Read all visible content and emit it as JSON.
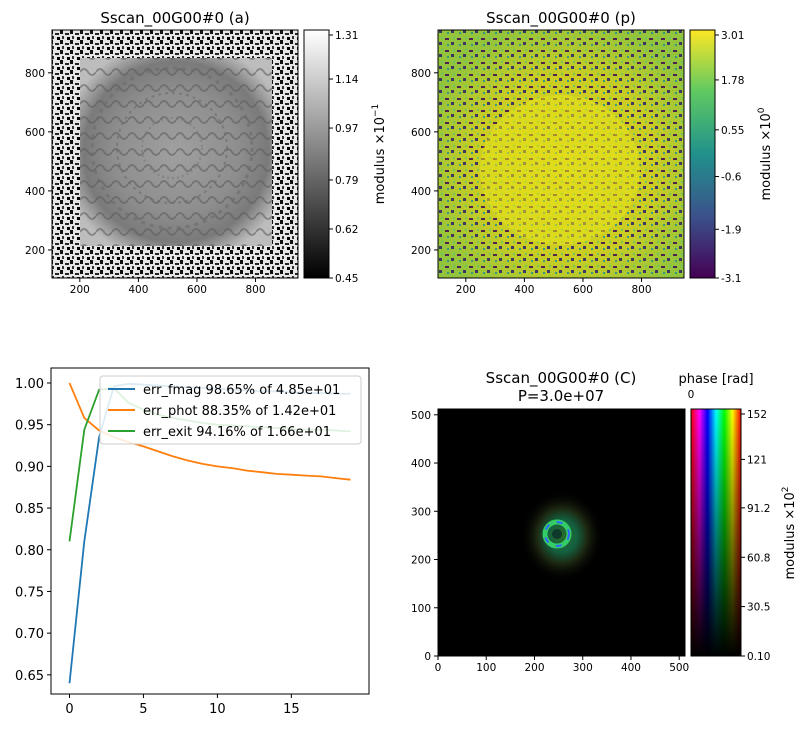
{
  "chart_data": [
    {
      "type": "heatmap",
      "title": "Sscan_00G00#0 (a)",
      "x_ticks": [
        "200",
        "400",
        "600",
        "800"
      ],
      "y_ticks": [
        "200",
        "400",
        "600",
        "800"
      ],
      "xlim": [
        105,
        945
      ],
      "ylim": [
        105,
        945
      ],
      "colorbar": {
        "ticks": [
          "1.31",
          "1.14",
          "0.97",
          "0.79",
          "0.62",
          "0.45"
        ],
        "range": [
          0.45,
          1.31
        ],
        "label": "modulus ×10",
        "label_exp": "−1",
        "colormap": "gray"
      }
    },
    {
      "type": "heatmap",
      "title": "Sscan_00G00#0 (p)",
      "x_ticks": [
        "200",
        "400",
        "600",
        "800"
      ],
      "y_ticks": [
        "200",
        "400",
        "600",
        "800"
      ],
      "xlim": [
        105,
        945
      ],
      "ylim": [
        105,
        945
      ],
      "colorbar": {
        "ticks": [
          "3.01",
          "1.78",
          "0.55",
          "-0.6",
          "-1.9",
          "-3.1"
        ],
        "range": [
          -3.1,
          3.01
        ],
        "label": "modulus ×10",
        "label_exp": "0",
        "colormap": "viridis"
      }
    },
    {
      "type": "line",
      "title": "",
      "x": [
        0,
        1,
        2,
        3,
        4,
        5,
        6,
        7,
        8,
        9,
        10,
        11,
        12,
        13,
        14,
        15,
        16,
        17,
        18,
        19
      ],
      "xlim": [
        -1.25,
        20.25
      ],
      "ylim": [
        0.627,
        1.018
      ],
      "x_ticks": [
        0,
        5,
        10,
        15
      ],
      "y_ticks": [
        0.65,
        0.7,
        0.75,
        0.8,
        0.85,
        0.9,
        0.95,
        1.0
      ],
      "legend_position": "upper-right",
      "series": [
        {
          "name": "err_fmag 98.65% of 4.85e+01",
          "color": "#1f77b4",
          "values": [
            0.64,
            0.81,
            0.935,
            0.996,
            0.999,
            0.998,
            0.997,
            0.996,
            0.995,
            0.994,
            0.993,
            0.992,
            0.991,
            0.99,
            0.99,
            0.989,
            0.988,
            0.988,
            0.987,
            0.987
          ]
        },
        {
          "name": "err_phot 88.35% of 1.42e+01",
          "color": "#ff7f0e",
          "values": [
            1.0,
            0.958,
            0.943,
            0.935,
            0.929,
            0.924,
            0.918,
            0.912,
            0.907,
            0.903,
            0.9,
            0.898,
            0.895,
            0.893,
            0.891,
            0.89,
            0.889,
            0.888,
            0.886,
            0.884
          ]
        },
        {
          "name": "err_exit 94.16% of 1.66e+01",
          "color": "#2ca02c",
          "values": [
            0.81,
            0.944,
            0.992,
            0.994,
            0.976,
            0.968,
            0.962,
            0.958,
            0.955,
            0.952,
            0.95,
            0.949,
            0.948,
            0.947,
            0.946,
            0.945,
            0.944,
            0.944,
            0.943,
            0.942
          ]
        }
      ]
    },
    {
      "type": "heatmap",
      "title": "Sscan_00G00#0 (C)",
      "subtitle": "P=3.0e+07",
      "x_ticks": [
        "0",
        "100",
        "200",
        "300",
        "400",
        "500"
      ],
      "y_ticks": [
        "0",
        "100",
        "200",
        "300",
        "400",
        "500"
      ],
      "xlim": [
        0,
        512
      ],
      "ylim": [
        0,
        512
      ],
      "colorbar": {
        "title": "phase [rad]",
        "top_tick": "0",
        "ticks": [
          "152",
          "121",
          "91.2",
          "60.8",
          "30.5",
          "0.10"
        ],
        "range": [
          0.1,
          152
        ],
        "label": "modulus ×10",
        "label_exp": "2",
        "colormap": "hsv-phase"
      }
    }
  ]
}
